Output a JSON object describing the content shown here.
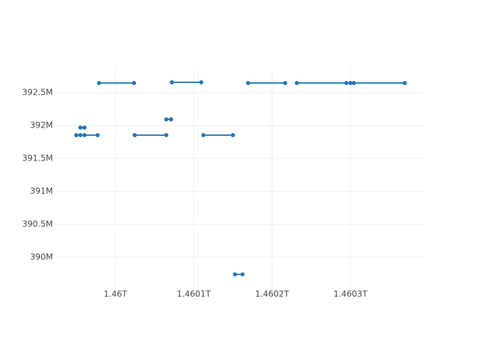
{
  "chart_data": {
    "type": "line",
    "x": [
      1459950000000,
      1459955300000,
      1459960500000,
      1459977200000,
      null,
      1459955300000,
      1459960500000,
      null,
      1459979000000,
      1460023700000,
      null,
      1460024600000,
      1460064900000,
      null,
      1460064900000,
      1460071000000,
      null,
      1460071900000,
      1460109600000,
      null,
      1460112300000,
      1460150000000,
      null,
      1460152600000,
      1460162300000,
      null,
      1460169300000,
      1460216700000,
      null,
      1460231600000,
      1460294700000,
      1460300000000,
      1460304400000,
      1460369300000
    ],
    "series": [
      {
        "color": "#1f77b4",
        "values": [
          391854000,
          391854000,
          391854000,
          391854000,
          null,
          391969000,
          391969000,
          null,
          392646000,
          392646000,
          null,
          391854000,
          391854000,
          null,
          392094000,
          392094000,
          null,
          392656000,
          392656000,
          null,
          391854000,
          391854000,
          null,
          389740000,
          389740000,
          null,
          392646000,
          392646000,
          null,
          392646000,
          392646000,
          392646000,
          392646000,
          392646000
        ]
      }
    ],
    "xlim": [
      1459922800000,
      1460396500000
    ],
    "ylim": [
      389531000,
      392865000
    ],
    "xticks": [
      {
        "value": 1460000000000,
        "label": "1.46T"
      },
      {
        "value": 1460100000000,
        "label": "1.4601T"
      },
      {
        "value": 1460200000000,
        "label": "1.4602T"
      },
      {
        "value": 1460300000000,
        "label": "1.4603T"
      }
    ],
    "yticks": [
      {
        "value": 390000000,
        "label": "390M"
      },
      {
        "value": 390500000,
        "label": "390.5M"
      },
      {
        "value": 391000000,
        "label": "391M"
      },
      {
        "value": 391500000,
        "label": "391.5M"
      },
      {
        "value": 392000000,
        "label": "392M"
      },
      {
        "value": 392500000,
        "label": "392.5M"
      }
    ],
    "grid": true
  }
}
